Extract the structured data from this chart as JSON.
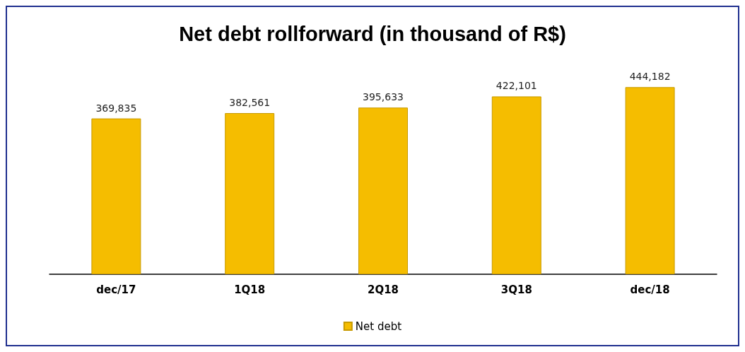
{
  "chart_data": {
    "type": "bar",
    "title": "Net debt rollforward (in thousand of R$)",
    "categories": [
      "dec/17",
      "1Q18",
      "2Q18",
      "3Q18",
      "dec/18"
    ],
    "series": [
      {
        "name": "Net debt",
        "color": "#f5bd00",
        "values": [
          369835,
          382561,
          395633,
          422101,
          444182
        ],
        "value_labels": [
          "369,835",
          "382,561",
          "395,633",
          "422,101",
          "444,182"
        ]
      }
    ],
    "tick_labels": "x",
    "grid": false,
    "legend": "bottom"
  }
}
